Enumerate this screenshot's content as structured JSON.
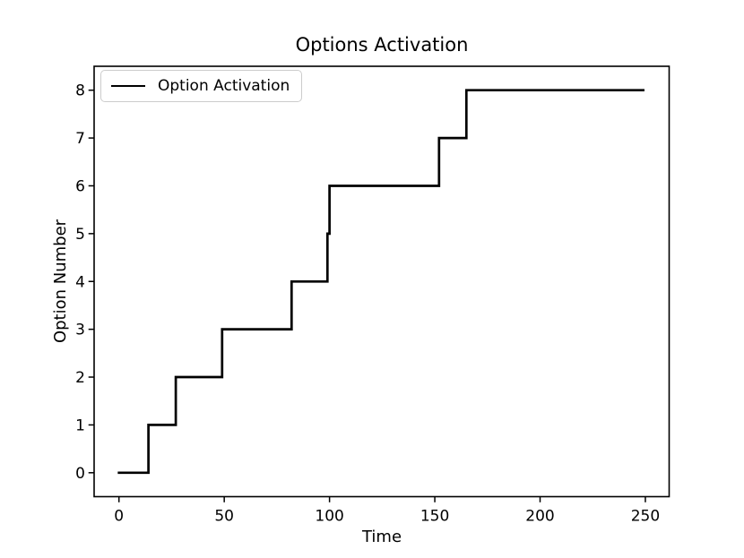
{
  "figure": {
    "background": "#ffffff",
    "accent_color": "#000000"
  },
  "chart_data": {
    "type": "line",
    "step_style": "post",
    "title": "Options Activation",
    "xlabel": "Time",
    "ylabel": "Option Number",
    "xlim": [
      -11.8,
      261.3
    ],
    "ylim": [
      -0.5,
      8.5
    ],
    "x_ticks": [
      0,
      50,
      100,
      150,
      200,
      250
    ],
    "y_ticks": [
      0,
      1,
      2,
      3,
      4,
      5,
      6,
      7,
      8
    ],
    "grid": false,
    "legend": {
      "position": "upper-left",
      "entries": [
        {
          "label": "Option Activation",
          "color": "#000000"
        }
      ]
    },
    "series": [
      {
        "name": "Option Activation",
        "color": "#000000",
        "line_width": 2.7,
        "step": "post",
        "x": [
          0,
          14,
          27,
          49,
          82,
          99,
          100,
          152,
          165,
          249
        ],
        "y": [
          0,
          1,
          2,
          3,
          4,
          5,
          6,
          7,
          8,
          8
        ]
      }
    ]
  }
}
